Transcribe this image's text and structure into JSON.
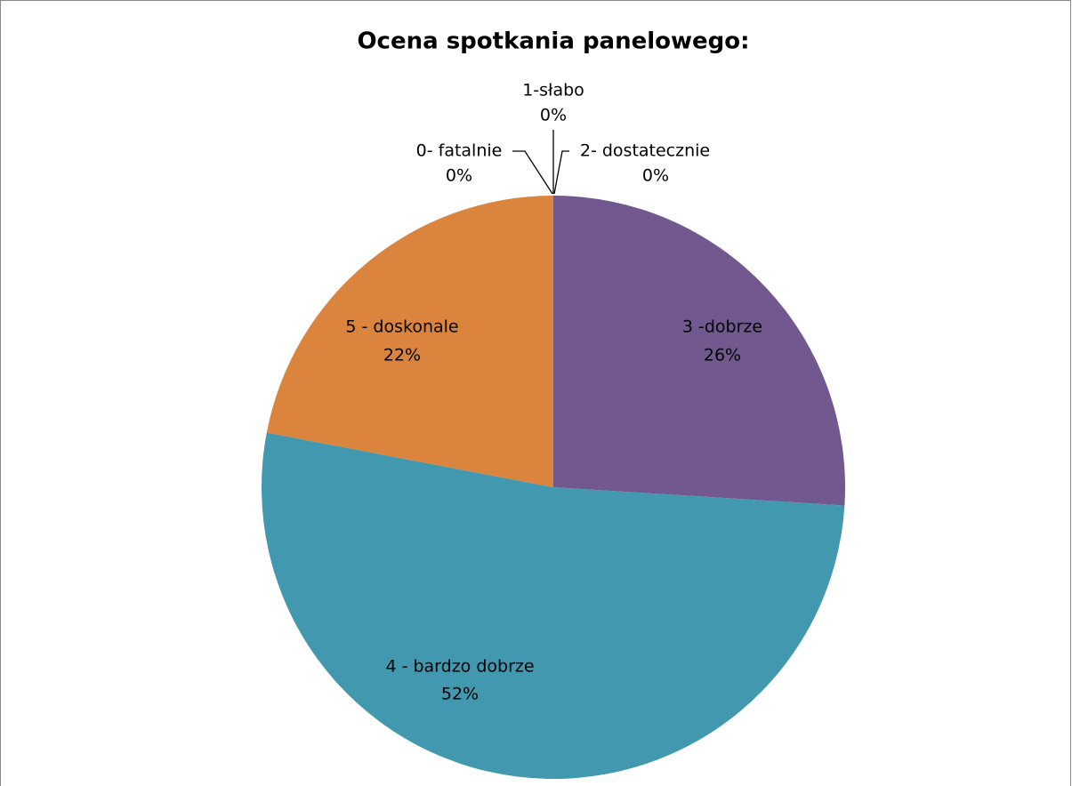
{
  "chart_data": {
    "type": "pie",
    "title": "Ocena spotkania panelowego:",
    "categories": [
      "0- fatalnie",
      "1-słabo",
      "2- dostatecznie",
      "3 -dobrze",
      "4 - bardzo dobrze",
      "5 - doskonale"
    ],
    "values": [
      0,
      0,
      0,
      26,
      52,
      22
    ],
    "value_labels": [
      "0%",
      "0%",
      "0%",
      "26%",
      "52%",
      "22%"
    ],
    "colors": [
      "#4572a7",
      "#aa4643",
      "#89a54e",
      "#71588f",
      "#4198af",
      "#db843d"
    ]
  }
}
